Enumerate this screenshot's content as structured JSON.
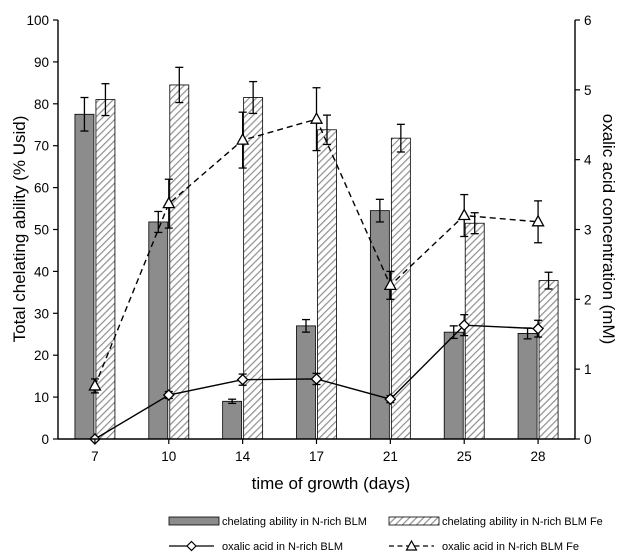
{
  "chart_data": {
    "type": "bar",
    "title": "",
    "xlabel": "time of growth (days)",
    "ylabel": "Total chelating ability (% Usid)",
    "y2label": "oxalic acid concentration (mM)",
    "categories": [
      "7",
      "10",
      "14",
      "17",
      "21",
      "25",
      "28"
    ],
    "ylim": [
      0,
      100
    ],
    "y2lim": [
      0,
      6
    ],
    "yticks": [
      "0",
      "10",
      "20",
      "30",
      "40",
      "50",
      "60",
      "70",
      "80",
      "90",
      "100"
    ],
    "y2ticks": [
      "0",
      "1",
      "2",
      "3",
      "4",
      "5",
      "6"
    ],
    "grid": false,
    "legend_position": "bottom",
    "bar_series": [
      {
        "name": "chelating ability in N-rich BLM",
        "axis": "left",
        "style": "solid-gray",
        "values": [
          77.5,
          51.8,
          9.0,
          27.0,
          54.5,
          25.5,
          25.2
        ],
        "errors": [
          4.0,
          2.5,
          0.5,
          1.5,
          2.7,
          1.5,
          1.3
        ]
      },
      {
        "name": "chelating ability in N-rich BLM Fe",
        "axis": "right-hatched",
        "style": "hatched",
        "values": [
          81.0,
          84.5,
          81.5,
          73.8,
          71.8,
          51.5,
          37.8
        ],
        "errors": [
          3.8,
          4.2,
          3.8,
          3.5,
          3.3,
          2.5,
          2.0
        ]
      }
    ],
    "line_series": [
      {
        "name": "oxalic acid in N-rich BLM",
        "axis": "right",
        "marker": "diamond",
        "dash": "solid",
        "values": [
          0.0,
          0.63,
          0.85,
          0.86,
          0.57,
          1.63,
          1.58
        ],
        "errors": [
          0.0,
          0.05,
          0.08,
          0.08,
          0.05,
          0.15,
          0.12
        ]
      },
      {
        "name": "oxalic acid in N-rich BLM Fe",
        "axis": "right",
        "marker": "triangle",
        "dash": "dashed",
        "values": [
          0.76,
          3.37,
          4.28,
          4.58,
          2.2,
          3.2,
          3.11
        ],
        "errors": [
          0.1,
          0.35,
          0.4,
          0.45,
          0.2,
          0.3,
          0.3
        ]
      }
    ],
    "colors": {
      "solid_bar": "#8c8c8c",
      "hatch_line": "#8f8f8f",
      "axis": "#000000"
    }
  }
}
